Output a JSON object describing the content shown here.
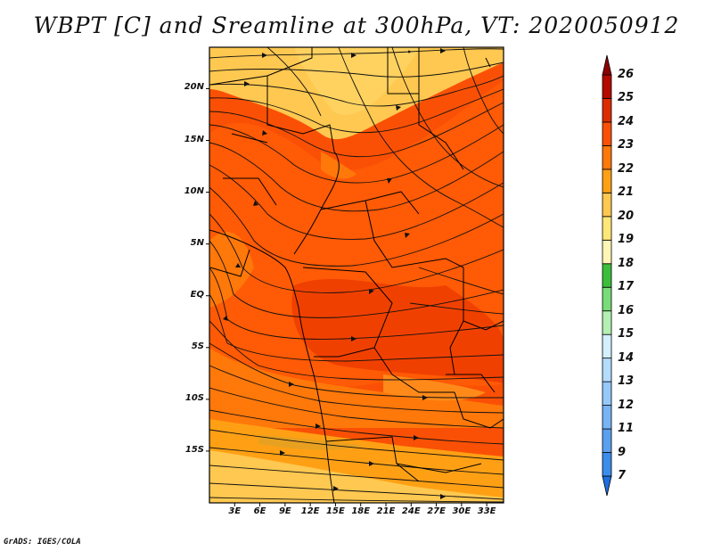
{
  "title": "WBPT [C] and Sreamline at 300hPa, VT: 2020050912",
  "credit": "GrADS: IGES/COLA",
  "map": {
    "lon_range": [
      0,
      35
    ],
    "lat_range": [
      -20,
      24
    ],
    "lat_ticks": [
      {
        "value": 20,
        "label": "20N"
      },
      {
        "value": 15,
        "label": "15N"
      },
      {
        "value": 10,
        "label": "10N"
      },
      {
        "value": 5,
        "label": "5N"
      },
      {
        "value": 0,
        "label": "EQ"
      },
      {
        "value": -5,
        "label": "5S"
      },
      {
        "value": -10,
        "label": "10S"
      },
      {
        "value": -15,
        "label": "15S"
      }
    ],
    "lon_ticks": [
      {
        "value": 3,
        "label": "3E"
      },
      {
        "value": 6,
        "label": "6E"
      },
      {
        "value": 9,
        "label": "9E"
      },
      {
        "value": 12,
        "label": "12E"
      },
      {
        "value": 15,
        "label": "15E"
      },
      {
        "value": 18,
        "label": "18E"
      },
      {
        "value": 21,
        "label": "21E"
      },
      {
        "value": 24,
        "label": "24E"
      },
      {
        "value": 27,
        "label": "27E"
      },
      {
        "value": 30,
        "label": "30E"
      },
      {
        "value": 33,
        "label": "33E"
      }
    ]
  },
  "colorbar": {
    "levels": [
      "7",
      "9",
      "11",
      "12",
      "13",
      "14",
      "15",
      "16",
      "17",
      "18",
      "19",
      "20",
      "21",
      "22",
      "23",
      "24",
      "25",
      "26"
    ],
    "colors": [
      "#1e6fe0",
      "#3c8ceb",
      "#5aa0f0",
      "#78b4f5",
      "#96c8fa",
      "#b4dcfd",
      "#d2f0ff",
      "#b4f0b4",
      "#78dc78",
      "#3cbe3c",
      "#fff5b4",
      "#ffe678",
      "#ffc850",
      "#ffa014",
      "#ff780a",
      "#fa5005",
      "#dc2d00",
      "#b40a00",
      "#8c0000"
    ]
  }
}
